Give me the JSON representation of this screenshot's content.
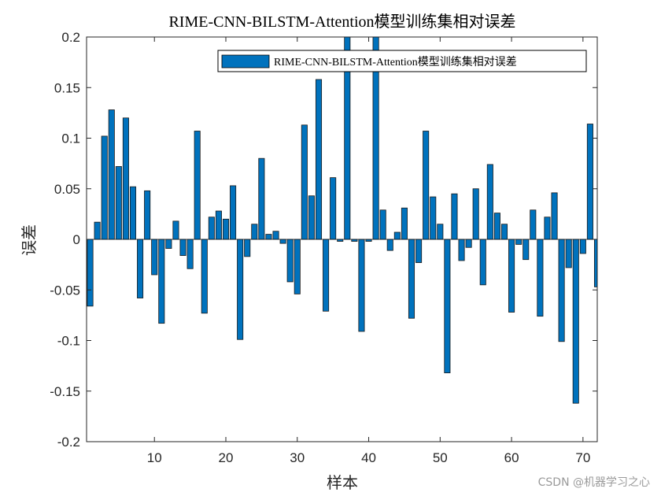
{
  "chart_data": {
    "type": "bar",
    "title": "RIME-CNN-BILSTM-Attention模型训练集相对误差",
    "xlabel": "样本",
    "ylabel": "误差",
    "xlim": [
      0.5,
      72
    ],
    "ylim": [
      -0.2,
      0.2
    ],
    "xticks": [
      10,
      20,
      30,
      40,
      50,
      60,
      70
    ],
    "yticks": [
      -0.2,
      -0.15,
      -0.1,
      -0.05,
      0,
      0.05,
      0.1,
      0.15,
      0.2
    ],
    "ytick_labels": [
      "-0.2",
      "-0.15",
      "-0.1",
      "-0.05",
      "0",
      "0.05",
      "0.1",
      "0.15",
      "0.2"
    ],
    "grid": false,
    "legend_position": "top-right",
    "series": [
      {
        "name": "RIME-CNN-BILSTM-Attention模型训练集相对误差",
        "color": "#0072BD",
        "x": [
          1,
          2,
          3,
          4,
          5,
          6,
          7,
          8,
          9,
          10,
          11,
          12,
          13,
          14,
          15,
          16,
          17,
          18,
          19,
          20,
          21,
          22,
          23,
          24,
          25,
          26,
          27,
          28,
          29,
          30,
          31,
          32,
          33,
          34,
          35,
          36,
          37,
          38,
          39,
          40,
          41,
          42,
          43,
          44,
          45,
          46,
          47,
          48,
          49,
          50,
          51,
          52,
          53,
          54,
          55,
          56,
          57,
          58,
          59,
          60,
          61,
          62,
          63,
          64,
          65,
          66,
          67,
          68,
          69,
          70,
          71,
          72
        ],
        "values": [
          -0.066,
          0.017,
          0.102,
          0.128,
          0.072,
          0.12,
          0.052,
          -0.058,
          0.048,
          -0.035,
          -0.083,
          -0.009,
          0.018,
          -0.016,
          -0.029,
          0.107,
          -0.073,
          0.022,
          0.028,
          0.02,
          0.053,
          -0.099,
          -0.017,
          0.015,
          0.08,
          0.005,
          0.008,
          -0.004,
          -0.042,
          -0.054,
          0.113,
          0.043,
          0.158,
          -0.071,
          0.061,
          -0.002,
          0.2,
          -0.002,
          -0.091,
          -0.002,
          0.2,
          0.029,
          -0.011,
          0.007,
          0.031,
          -0.078,
          -0.023,
          0.107,
          0.042,
          0.015,
          -0.132,
          0.045,
          -0.021,
          -0.008,
          0.05,
          -0.045,
          0.074,
          0.026,
          0.015,
          -0.072,
          -0.005,
          -0.02,
          0.029,
          -0.076,
          0.022,
          0.046,
          -0.101,
          -0.028,
          -0.162,
          -0.014,
          0.114,
          -0.047
        ]
      }
    ]
  },
  "watermark": "CSDN @机器学习之心"
}
